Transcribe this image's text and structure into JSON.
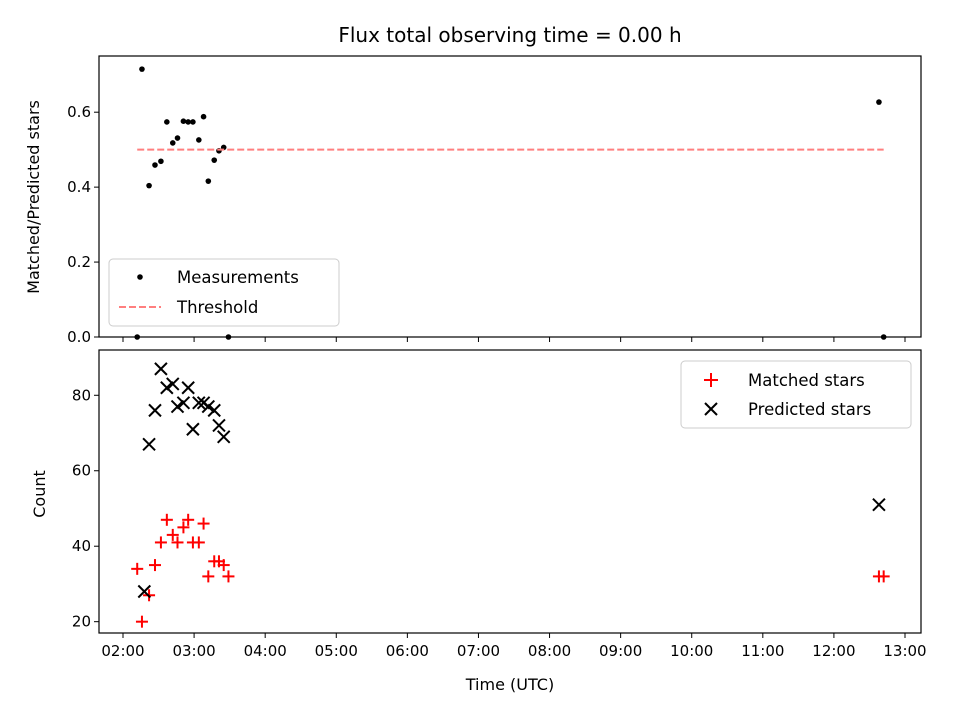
{
  "chart_data": [
    {
      "type": "scatter",
      "title": "Flux total observing time = 0.00 h",
      "ylabel": "Matched/Predicted stars",
      "xlabel": "",
      "xlim": [
        "02:00",
        "13:00"
      ],
      "ylim": [
        0,
        0.75
      ],
      "yticks": [
        0.0,
        0.2,
        0.4,
        0.6
      ],
      "legend_position": "lower-left",
      "series": [
        {
          "name": "Measurements",
          "kind": "scatter",
          "marker": "dot",
          "color": "#000000",
          "x": [
            "02:12",
            "02:16",
            "02:22",
            "02:27",
            "02:32",
            "02:37",
            "02:42",
            "02:46",
            "02:51",
            "02:55",
            "02:59",
            "03:04",
            "03:08",
            "03:12",
            "03:17",
            "03:21",
            "03:25",
            "03:29",
            "12:38",
            "12:42"
          ],
          "y": [
            0.0,
            0.715,
            0.404,
            0.459,
            0.469,
            0.574,
            0.518,
            0.531,
            0.576,
            0.574,
            0.574,
            0.526,
            0.588,
            0.416,
            0.472,
            0.497,
            0.506,
            0.0,
            0.627,
            0.0
          ]
        },
        {
          "name": "Threshold",
          "kind": "line",
          "style": "dashed",
          "color": "#ff7f7f",
          "x": [
            "02:12",
            "12:42"
          ],
          "y": [
            0.5,
            0.5
          ]
        }
      ]
    },
    {
      "type": "scatter",
      "title": "",
      "ylabel": "Count",
      "xlabel": "Time (UTC)",
      "xlim": [
        "02:00",
        "13:00"
      ],
      "ylim": [
        17,
        92
      ],
      "yticks": [
        20,
        40,
        60,
        80
      ],
      "xticks": [
        "02:00",
        "03:00",
        "04:00",
        "05:00",
        "06:00",
        "07:00",
        "08:00",
        "09:00",
        "10:00",
        "11:00",
        "12:00",
        "13:00"
      ],
      "legend_position": "top-right",
      "series": [
        {
          "name": "Matched stars",
          "marker": "plus",
          "color": "#ff0000",
          "x": [
            "02:12",
            "02:16",
            "02:22",
            "02:27",
            "02:32",
            "02:37",
            "02:42",
            "02:46",
            "02:51",
            "02:55",
            "02:59",
            "03:04",
            "03:08",
            "03:12",
            "03:17",
            "03:21",
            "03:25",
            "03:29",
            "12:38",
            "12:42"
          ],
          "y": [
            34,
            20,
            27,
            35,
            41,
            47,
            43,
            41,
            45,
            47,
            41,
            41,
            46,
            32,
            36,
            36,
            35,
            32,
            32,
            32
          ]
        },
        {
          "name": "Predicted stars",
          "marker": "x",
          "color": "#000000",
          "x": [
            "02:18",
            "02:22",
            "02:27",
            "02:32",
            "02:37",
            "02:42",
            "02:46",
            "02:51",
            "02:55",
            "02:59",
            "03:04",
            "03:08",
            "03:12",
            "03:17",
            "03:21",
            "03:25",
            "12:38"
          ],
          "y": [
            28,
            67,
            76,
            87,
            82,
            83,
            77,
            78,
            82,
            71,
            78,
            78,
            77,
            76,
            72,
            69,
            51
          ]
        }
      ]
    }
  ]
}
